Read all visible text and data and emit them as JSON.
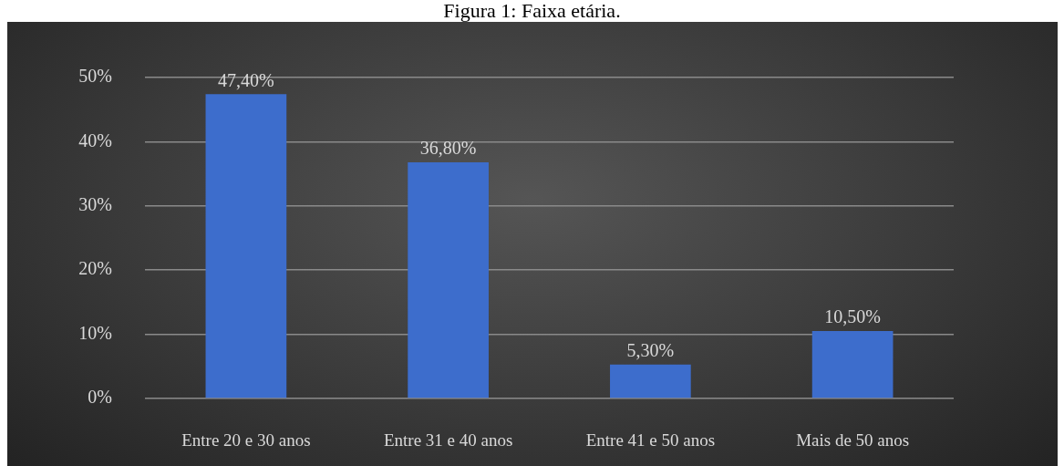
{
  "chart_data": {
    "type": "bar",
    "title": "Figura 1: Faixa etária.",
    "categories": [
      "Entre 20 e 30 anos",
      "Entre 31 e 40 anos",
      "Entre 41 e 50 anos",
      "Mais de 50 anos"
    ],
    "values": [
      47.4,
      36.8,
      5.3,
      10.5
    ],
    "value_labels": [
      "47,40%",
      "36,80%",
      "5,30%",
      "10,50%"
    ],
    "color": "#3d6dcc",
    "ylim": [
      0,
      50
    ],
    "yticks": [
      {
        "value": 0,
        "label": "0%"
      },
      {
        "value": 10,
        "label": "10%"
      },
      {
        "value": 20,
        "label": "20%"
      },
      {
        "value": 30,
        "label": "30%"
      },
      {
        "value": 40,
        "label": "40%"
      },
      {
        "value": 50,
        "label": "50%"
      }
    ],
    "grid": "y"
  }
}
